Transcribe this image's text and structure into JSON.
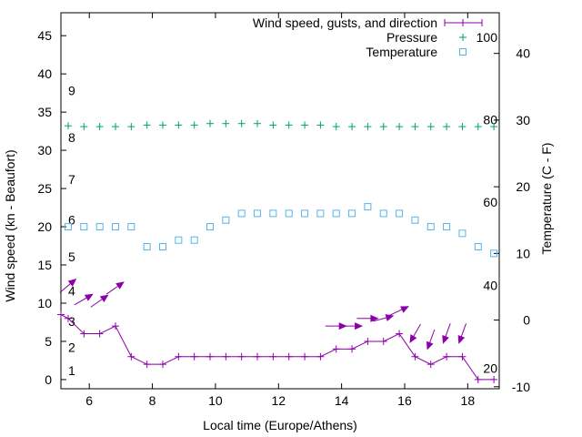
{
  "chart_data": {
    "type": "line",
    "x_label": "Local time (Europe/Athens)",
    "y_label": "Wind speed (kn - Beaufort)",
    "y2_label": "Temperature (C - F)",
    "x_range": [
      5.1,
      19.0
    ],
    "y_range": [
      -1.2,
      48.0
    ],
    "y2_range": [
      -10.3,
      46.1
    ],
    "x_ticks": [
      6,
      8,
      10,
      12,
      14,
      16,
      18
    ],
    "y_ticks": [
      0,
      5,
      10,
      15,
      20,
      25,
      30,
      35,
      40,
      45
    ],
    "y2_ticks": [
      -10,
      0,
      10,
      20,
      30,
      40
    ],
    "beaufort_labels": [
      {
        "label": "1",
        "y": 1.2
      },
      {
        "label": "2",
        "y": 4.2
      },
      {
        "label": "3",
        "y": 7.6
      },
      {
        "label": "4",
        "y": 11.6
      },
      {
        "label": "5",
        "y": 16.1
      },
      {
        "label": "6",
        "y": 20.9
      },
      {
        "label": "7",
        "y": 26.2
      },
      {
        "label": "8",
        "y": 31.7
      },
      {
        "label": "9",
        "y": 37.8
      }
    ],
    "fahrenheit_labels": [
      {
        "label": "20",
        "y": 1.5
      },
      {
        "label": "40",
        "y": 12.3
      },
      {
        "label": "60",
        "y": 23.2
      },
      {
        "label": "80",
        "y": 34.0
      },
      {
        "label": "100",
        "y": 44.8
      }
    ],
    "series": [
      {
        "name": "Wind speed, gusts, and direction",
        "color": "#8b00a8",
        "marker": "plus",
        "x": [
          5.1,
          5.33,
          5.83,
          6.33,
          6.83,
          7.33,
          7.83,
          8.33,
          8.83,
          9.33,
          9.83,
          10.33,
          10.83,
          11.33,
          11.83,
          12.33,
          12.83,
          13.33,
          13.83,
          14.33,
          14.83,
          15.33,
          15.83,
          16.33,
          16.83,
          17.33,
          17.83,
          18.33,
          18.83
        ],
        "values": [
          8.5,
          8,
          6,
          6,
          7,
          3,
          2,
          2,
          3,
          3,
          3,
          3,
          3,
          3,
          3,
          3,
          3,
          3,
          4,
          4,
          5,
          5,
          6,
          3,
          2,
          3,
          3,
          0,
          0
        ]
      },
      {
        "name": "Pressure",
        "color": "#009e73",
        "marker": "plus",
        "x": [
          5.33,
          5.83,
          6.33,
          6.83,
          7.33,
          7.83,
          8.33,
          8.83,
          9.33,
          9.83,
          10.33,
          10.83,
          11.33,
          11.83,
          12.33,
          12.83,
          13.33,
          13.83,
          14.33,
          14.83,
          15.33,
          15.83,
          16.33,
          16.83,
          17.33,
          17.83,
          18.33,
          18.83
        ],
        "values": [
          33.2,
          33.1,
          33.1,
          33.1,
          33.1,
          33.3,
          33.3,
          33.3,
          33.3,
          33.5,
          33.5,
          33.5,
          33.5,
          33.3,
          33.3,
          33.3,
          33.3,
          33.1,
          33.1,
          33.1,
          33.1,
          33.1,
          33.1,
          33.1,
          33.1,
          33.1,
          33.1,
          33.1
        ]
      },
      {
        "name": "Temperature",
        "color": "#56b4e9",
        "marker": "square",
        "x": [
          5.33,
          5.83,
          6.33,
          6.83,
          7.33,
          7.83,
          8.33,
          8.83,
          9.33,
          9.83,
          10.33,
          10.83,
          11.33,
          11.83,
          12.33,
          12.83,
          13.33,
          13.83,
          14.33,
          14.83,
          15.33,
          15.83,
          16.33,
          16.83,
          17.33,
          17.83,
          18.33,
          18.83
        ],
        "values": [
          14,
          14,
          14,
          14,
          14,
          11,
          11,
          12,
          12,
          14,
          15,
          16,
          16,
          16,
          16,
          16,
          16,
          16,
          16,
          17,
          16,
          16,
          15,
          14,
          14,
          13,
          11,
          10
        ]
      }
    ],
    "wind_arrows": [
      {
        "x": 5.33,
        "y": 12.3,
        "angle": -40
      },
      {
        "x": 5.83,
        "y": 10.5,
        "angle": -30
      },
      {
        "x": 6.33,
        "y": 10.3,
        "angle": -35
      },
      {
        "x": 6.83,
        "y": 12.0,
        "angle": -35
      },
      {
        "x": 13.83,
        "y": 7.0,
        "angle": 0
      },
      {
        "x": 14.33,
        "y": 7.0,
        "angle": 0
      },
      {
        "x": 14.83,
        "y": 8.0,
        "angle": 0
      },
      {
        "x": 15.33,
        "y": 8.0,
        "angle": -15
      },
      {
        "x": 15.83,
        "y": 9.0,
        "angle": -25
      },
      {
        "x": 16.33,
        "y": 6.0,
        "angle": 120
      },
      {
        "x": 16.83,
        "y": 5.2,
        "angle": 110
      },
      {
        "x": 17.33,
        "y": 6.0,
        "angle": 110
      },
      {
        "x": 17.83,
        "y": 6.0,
        "angle": 110
      }
    ]
  }
}
